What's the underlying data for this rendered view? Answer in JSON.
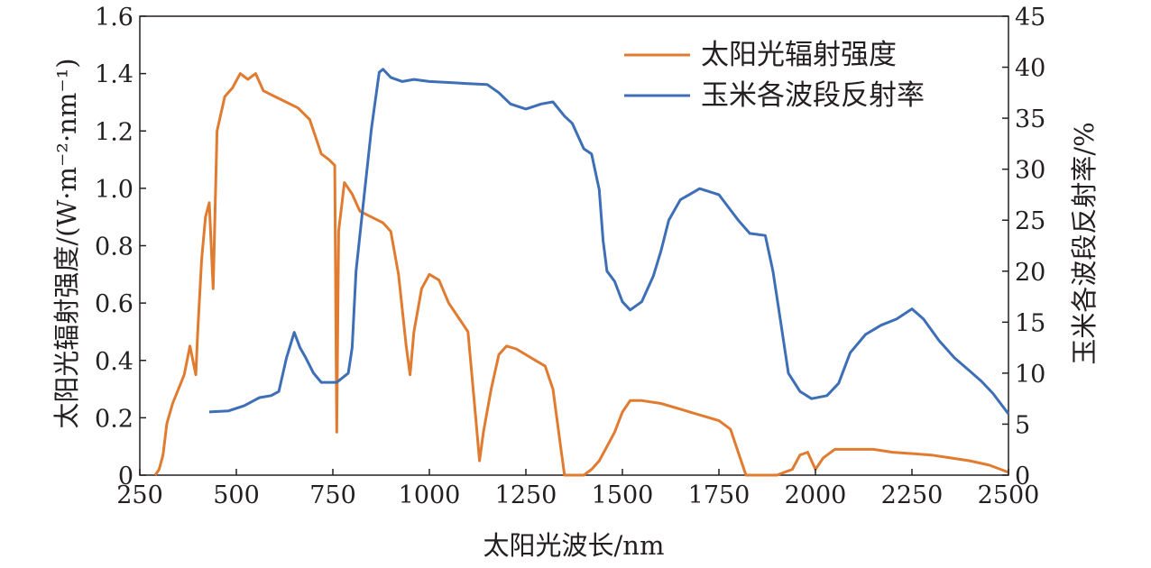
{
  "chart_data": {
    "type": "line",
    "xlabel": "太阳光波长/nm",
    "ylabel_left": "太阳光辐射强度/(W·m⁻²·nm⁻¹)",
    "ylabel_right": "玉米各波段反射率/%",
    "xlim": [
      250,
      2500
    ],
    "ylim_left": [
      0,
      1.6
    ],
    "ylim_right": [
      0,
      45
    ],
    "x_ticks": [
      "250",
      "500",
      "750",
      "1000",
      "1250",
      "1500",
      "1750",
      "2000",
      "2250",
      "2500"
    ],
    "y_left_ticks": [
      "0",
      "0.2",
      "0.4",
      "0.6",
      "0.8",
      "1.0",
      "1.2",
      "1.4",
      "1.6"
    ],
    "y_right_ticks": [
      "0",
      "5",
      "10",
      "15",
      "20",
      "25",
      "30",
      "35",
      "40",
      "45"
    ],
    "grid": false,
    "legend_position": "top-right",
    "series": [
      {
        "name": "太阳光辐射强度",
        "color": "#e07b30",
        "axis": "left",
        "points": [
          [
            290,
            0
          ],
          [
            300,
            0.02
          ],
          [
            310,
            0.07
          ],
          [
            320,
            0.18
          ],
          [
            335,
            0.25
          ],
          [
            350,
            0.3
          ],
          [
            365,
            0.35
          ],
          [
            380,
            0.45
          ],
          [
            395,
            0.35
          ],
          [
            400,
            0.5
          ],
          [
            410,
            0.75
          ],
          [
            420,
            0.9
          ],
          [
            430,
            0.95
          ],
          [
            440,
            0.65
          ],
          [
            450,
            1.2
          ],
          [
            470,
            1.32
          ],
          [
            490,
            1.35
          ],
          [
            510,
            1.4
          ],
          [
            530,
            1.38
          ],
          [
            550,
            1.4
          ],
          [
            570,
            1.34
          ],
          [
            600,
            1.32
          ],
          [
            630,
            1.3
          ],
          [
            660,
            1.28
          ],
          [
            690,
            1.24
          ],
          [
            720,
            1.12
          ],
          [
            740,
            1.1
          ],
          [
            755,
            1.08
          ],
          [
            760,
            0.15
          ],
          [
            765,
            0.85
          ],
          [
            780,
            1.02
          ],
          [
            800,
            0.98
          ],
          [
            820,
            0.92
          ],
          [
            850,
            0.9
          ],
          [
            880,
            0.88
          ],
          [
            900,
            0.85
          ],
          [
            920,
            0.7
          ],
          [
            940,
            0.45
          ],
          [
            950,
            0.35
          ],
          [
            960,
            0.5
          ],
          [
            980,
            0.65
          ],
          [
            1000,
            0.7
          ],
          [
            1025,
            0.68
          ],
          [
            1050,
            0.6
          ],
          [
            1075,
            0.55
          ],
          [
            1100,
            0.5
          ],
          [
            1120,
            0.2
          ],
          [
            1130,
            0.05
          ],
          [
            1140,
            0.15
          ],
          [
            1160,
            0.3
          ],
          [
            1180,
            0.42
          ],
          [
            1200,
            0.45
          ],
          [
            1225,
            0.44
          ],
          [
            1250,
            0.42
          ],
          [
            1275,
            0.4
          ],
          [
            1300,
            0.38
          ],
          [
            1320,
            0.3
          ],
          [
            1340,
            0.1
          ],
          [
            1350,
            0
          ],
          [
            1400,
            0
          ],
          [
            1420,
            0.02
          ],
          [
            1440,
            0.05
          ],
          [
            1460,
            0.1
          ],
          [
            1480,
            0.15
          ],
          [
            1500,
            0.22
          ],
          [
            1520,
            0.26
          ],
          [
            1550,
            0.26
          ],
          [
            1600,
            0.25
          ],
          [
            1650,
            0.23
          ],
          [
            1700,
            0.21
          ],
          [
            1750,
            0.19
          ],
          [
            1780,
            0.16
          ],
          [
            1800,
            0.08
          ],
          [
            1820,
            0
          ],
          [
            1900,
            0
          ],
          [
            1940,
            0.02
          ],
          [
            1960,
            0.07
          ],
          [
            1980,
            0.08
          ],
          [
            1990,
            0.05
          ],
          [
            2000,
            0.02
          ],
          [
            2020,
            0.06
          ],
          [
            2050,
            0.09
          ],
          [
            2100,
            0.09
          ],
          [
            2150,
            0.09
          ],
          [
            2200,
            0.08
          ],
          [
            2250,
            0.075
          ],
          [
            2300,
            0.07
          ],
          [
            2350,
            0.06
          ],
          [
            2400,
            0.05
          ],
          [
            2450,
            0.035
          ],
          [
            2480,
            0.02
          ],
          [
            2500,
            0.01
          ]
        ]
      },
      {
        "name": "玉米各波段反射率",
        "color": "#3d6fb6",
        "axis": "right",
        "points": [
          [
            430,
            6.2
          ],
          [
            480,
            6.3
          ],
          [
            520,
            6.8
          ],
          [
            560,
            7.6
          ],
          [
            590,
            7.8
          ],
          [
            610,
            8.2
          ],
          [
            630,
            11.5
          ],
          [
            650,
            14
          ],
          [
            665,
            12.5
          ],
          [
            680,
            11.5
          ],
          [
            700,
            10
          ],
          [
            720,
            9.1
          ],
          [
            760,
            9.1
          ],
          [
            790,
            10
          ],
          [
            800,
            12.5
          ],
          [
            810,
            20
          ],
          [
            830,
            27
          ],
          [
            850,
            34
          ],
          [
            870,
            39.5
          ],
          [
            880,
            39.8
          ],
          [
            900,
            39
          ],
          [
            930,
            38.6
          ],
          [
            960,
            38.8
          ],
          [
            1000,
            38.6
          ],
          [
            1050,
            38.5
          ],
          [
            1100,
            38.4
          ],
          [
            1150,
            38.3
          ],
          [
            1180,
            37.5
          ],
          [
            1210,
            36.4
          ],
          [
            1250,
            35.9
          ],
          [
            1290,
            36.4
          ],
          [
            1320,
            36.6
          ],
          [
            1350,
            35.2
          ],
          [
            1370,
            34.5
          ],
          [
            1400,
            32
          ],
          [
            1420,
            31.5
          ],
          [
            1440,
            28
          ],
          [
            1450,
            23
          ],
          [
            1460,
            20
          ],
          [
            1470,
            19.5
          ],
          [
            1480,
            19
          ],
          [
            1500,
            17
          ],
          [
            1520,
            16.2
          ],
          [
            1550,
            17
          ],
          [
            1580,
            19.5
          ],
          [
            1600,
            22
          ],
          [
            1620,
            25
          ],
          [
            1650,
            27
          ],
          [
            1700,
            28.1
          ],
          [
            1750,
            27.5
          ],
          [
            1780,
            26
          ],
          [
            1800,
            25
          ],
          [
            1830,
            23.7
          ],
          [
            1870,
            23.5
          ],
          [
            1890,
            20
          ],
          [
            1910,
            15
          ],
          [
            1930,
            10
          ],
          [
            1960,
            8.2
          ],
          [
            1990,
            7.5
          ],
          [
            2030,
            7.8
          ],
          [
            2060,
            9
          ],
          [
            2090,
            12
          ],
          [
            2130,
            13.8
          ],
          [
            2170,
            14.7
          ],
          [
            2210,
            15.3
          ],
          [
            2250,
            16.3
          ],
          [
            2280,
            15.3
          ],
          [
            2320,
            13.2
          ],
          [
            2360,
            11.5
          ],
          [
            2400,
            10.2
          ],
          [
            2430,
            9.2
          ],
          [
            2460,
            8
          ],
          [
            2500,
            6
          ]
        ]
      }
    ]
  }
}
